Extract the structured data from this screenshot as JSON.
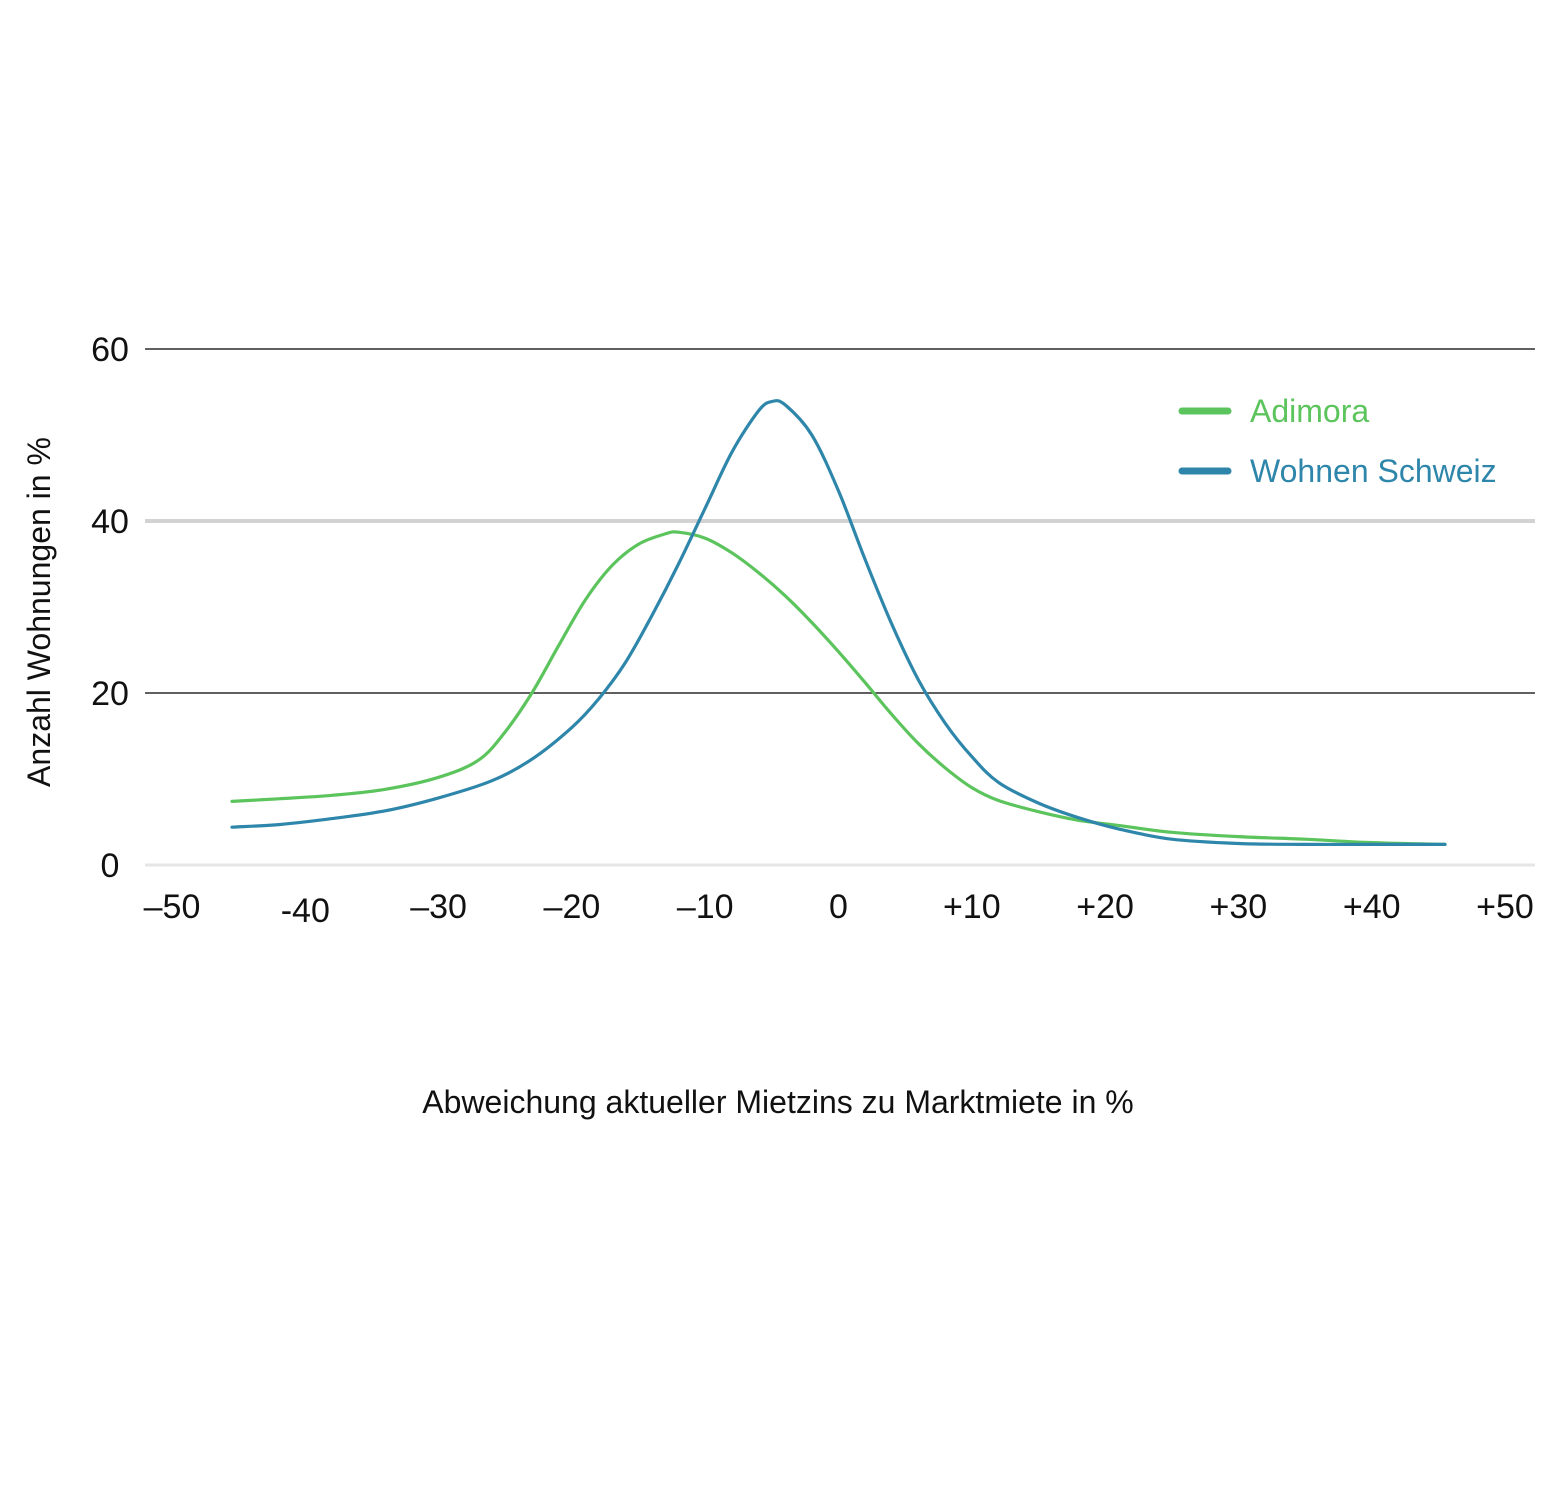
{
  "chart_data": {
    "type": "line",
    "title": "",
    "xlabel": "Abweichung aktueller Mietzins zu Marktmiete in %",
    "ylabel": "Anzahl Wohnungen in %",
    "xlim": [
      -50,
      50
    ],
    "ylim": [
      0,
      60
    ],
    "x_ticks": [
      {
        "value": -50,
        "label": "–50"
      },
      {
        "value": -40,
        "label": "-40"
      },
      {
        "value": -30,
        "label": "–30"
      },
      {
        "value": -20,
        "label": "–20"
      },
      {
        "value": -10,
        "label": "–10"
      },
      {
        "value": 0,
        "label": "0"
      },
      {
        "value": 10,
        "label": "+10"
      },
      {
        "value": 20,
        "label": "+20"
      },
      {
        "value": 30,
        "label": "+30"
      },
      {
        "value": 40,
        "label": "+40"
      },
      {
        "value": 50,
        "label": "+50"
      }
    ],
    "y_ticks": [
      {
        "value": 0,
        "label": "0"
      },
      {
        "value": 20,
        "label": "20"
      },
      {
        "value": 40,
        "label": "40"
      },
      {
        "value": 60,
        "label": "60"
      }
    ],
    "legend_position": "top-right",
    "series": [
      {
        "name": "Adimora",
        "color": "#5cc45c",
        "points": [
          [
            -45.5,
            7.4
          ],
          [
            -42,
            7.7
          ],
          [
            -38,
            8.1
          ],
          [
            -34,
            8.8
          ],
          [
            -30,
            10.2
          ],
          [
            -27,
            12.2
          ],
          [
            -25,
            15.5
          ],
          [
            -23,
            20.0
          ],
          [
            -21,
            25.5
          ],
          [
            -19,
            30.8
          ],
          [
            -17,
            34.8
          ],
          [
            -15,
            37.3
          ],
          [
            -13,
            38.5
          ],
          [
            -12,
            38.7
          ],
          [
            -10,
            38.0
          ],
          [
            -8,
            36.3
          ],
          [
            -6,
            34.0
          ],
          [
            -4,
            31.3
          ],
          [
            -2,
            28.2
          ],
          [
            0,
            24.8
          ],
          [
            2,
            21.2
          ],
          [
            4,
            17.5
          ],
          [
            6,
            14.1
          ],
          [
            8,
            11.3
          ],
          [
            10,
            9.0
          ],
          [
            12,
            7.5
          ],
          [
            15,
            6.2
          ],
          [
            18,
            5.2
          ],
          [
            21,
            4.6
          ],
          [
            25,
            3.8
          ],
          [
            30,
            3.3
          ],
          [
            35,
            3.0
          ],
          [
            40,
            2.6
          ],
          [
            45.5,
            2.4
          ]
        ]
      },
      {
        "name": "Wohnen Schweiz",
        "color": "#2e86ab",
        "points": [
          [
            -45.5,
            4.4
          ],
          [
            -42,
            4.7
          ],
          [
            -38,
            5.4
          ],
          [
            -34,
            6.3
          ],
          [
            -30,
            7.8
          ],
          [
            -26,
            9.8
          ],
          [
            -23,
            12.3
          ],
          [
            -20,
            16.0
          ],
          [
            -18,
            19.3
          ],
          [
            -16,
            23.5
          ],
          [
            -14,
            29.0
          ],
          [
            -12,
            35.0
          ],
          [
            -10,
            41.5
          ],
          [
            -8,
            48.0
          ],
          [
            -6,
            52.8
          ],
          [
            -5,
            53.9
          ],
          [
            -4,
            53.5
          ],
          [
            -2,
            50.0
          ],
          [
            0,
            43.5
          ],
          [
            2,
            35.5
          ],
          [
            4,
            28.0
          ],
          [
            6,
            21.5
          ],
          [
            8,
            16.5
          ],
          [
            10,
            12.6
          ],
          [
            12,
            9.6
          ],
          [
            15,
            7.2
          ],
          [
            18,
            5.5
          ],
          [
            21,
            4.2
          ],
          [
            25,
            3.0
          ],
          [
            30,
            2.5
          ],
          [
            35,
            2.4
          ],
          [
            40,
            2.4
          ],
          [
            45.5,
            2.4
          ]
        ]
      }
    ]
  }
}
